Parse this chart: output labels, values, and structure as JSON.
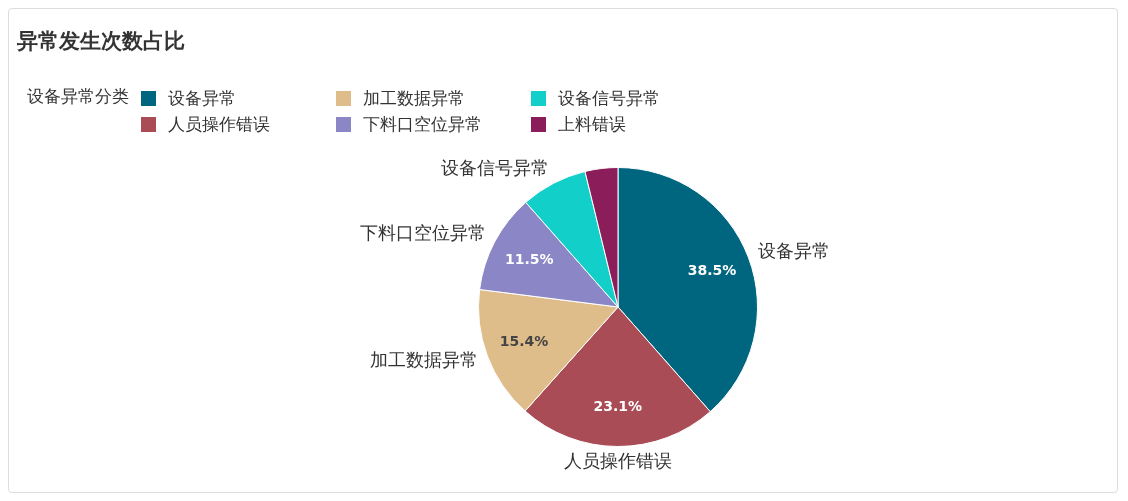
{
  "chart_data": {
    "type": "pie",
    "title": "异常发生次数占比",
    "legend_title": "设备异常分类",
    "legend": "top left",
    "categories": [
      "设备异常",
      "人员操作错误",
      "加工数据异常",
      "下料口空位异常",
      "设备信号异常",
      "上料错误"
    ],
    "values": [
      38.5,
      23.1,
      15.4,
      11.5,
      7.7,
      3.8
    ],
    "colors": [
      "#00657f",
      "#a94c56",
      "#dfbd8b",
      "#8b87c6",
      "#12d0c9",
      "#8b1e5a"
    ],
    "value_labels": [
      "38.5%",
      "23.1%",
      "15.4%",
      "11.5%",
      null,
      null
    ]
  }
}
